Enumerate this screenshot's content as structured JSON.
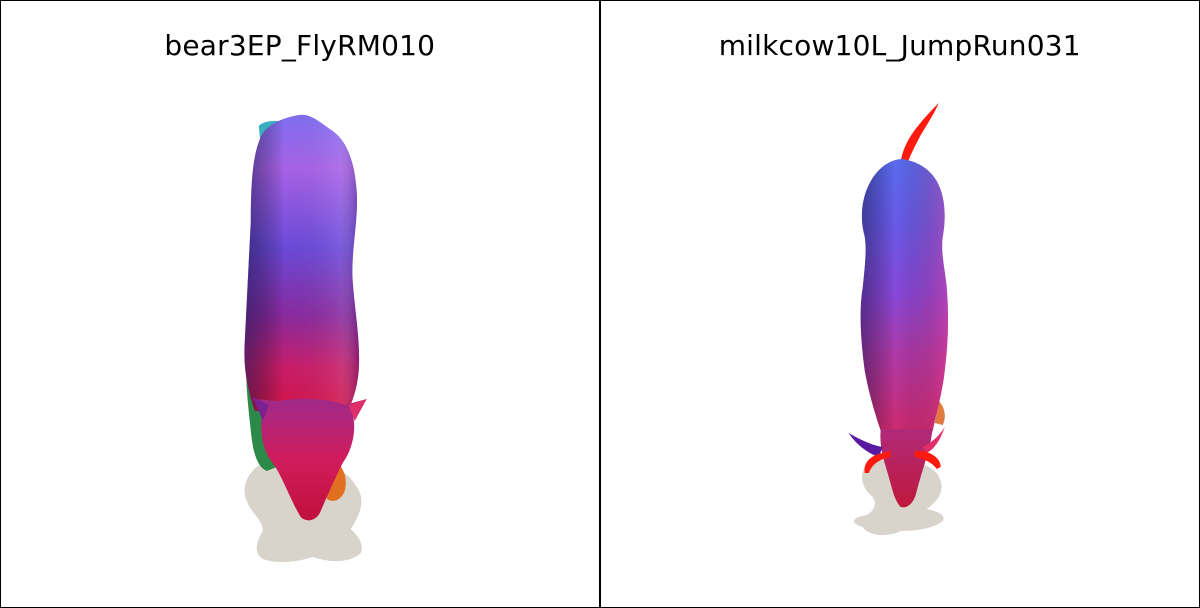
{
  "panels": [
    {
      "title": "bear3EP_FlyRM010",
      "subject": "bear",
      "background": "#ffffff"
    },
    {
      "title": "milkcow10L_JumpRun031",
      "subject": "cow",
      "background": "#ffffff"
    }
  ],
  "colors": {
    "shadow": "#d8d4cc",
    "border": "#000000",
    "mesh_blue": "#5a6cf0",
    "mesh_violet": "#a75ee0",
    "mesh_magenta": "#d0205a",
    "mesh_red": "#ff1a10",
    "mesh_green": "#2c8a48",
    "mesh_orange": "#e07020",
    "mesh_teal": "#38b0c0"
  }
}
